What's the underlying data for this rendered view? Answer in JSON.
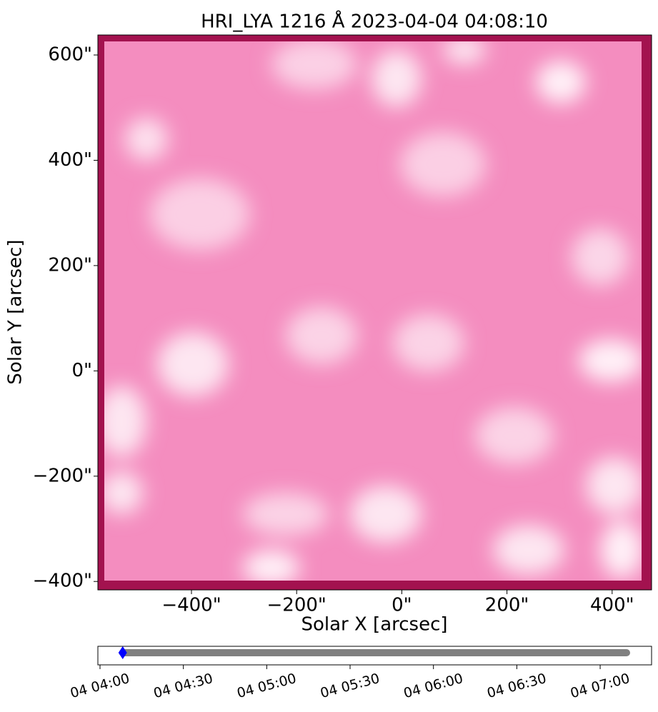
{
  "chart_data": [
    {
      "type": "image",
      "title": "HRI_LYA 1216 Å 2023-04-04 04:08:10",
      "x_label": "Solar X [arcsec]",
      "y_label": "Solar Y [arcsec]",
      "xlim": [
        -578,
        475
      ],
      "ylim": [
        -416,
        638
      ],
      "xticks": [
        {
          "value": -400,
          "label": "−400\""
        },
        {
          "value": -200,
          "label": "−200\""
        },
        {
          "value": 0,
          "label": "0\""
        },
        {
          "value": 200,
          "label": "200\""
        },
        {
          "value": 400,
          "label": "400\""
        }
      ],
      "yticks": [
        {
          "value": -400,
          "label": "−400\""
        },
        {
          "value": -200,
          "label": "−200\""
        },
        {
          "value": 0,
          "label": "0\""
        },
        {
          "value": 200,
          "label": "200\""
        },
        {
          "value": 400,
          "label": "400\""
        },
        {
          "value": 600,
          "label": "600\""
        }
      ]
    },
    {
      "type": "timeline",
      "xlim": [
        "04 03:59:14",
        "04 07:18:30"
      ],
      "xticks": [
        "04 04:00",
        "04 04:30",
        "04 05:00",
        "04 05:30",
        "04 06:00",
        "04 06:30",
        "04 07:00"
      ],
      "series": [
        {
          "kind": "range",
          "color": "#808080",
          "x": [
            "04 04:08:10",
            "04 07:09:30"
          ]
        },
        {
          "kind": "marker",
          "color": "#0000ff",
          "x": [
            "04 04:08:10"
          ]
        }
      ]
    }
  ]
}
